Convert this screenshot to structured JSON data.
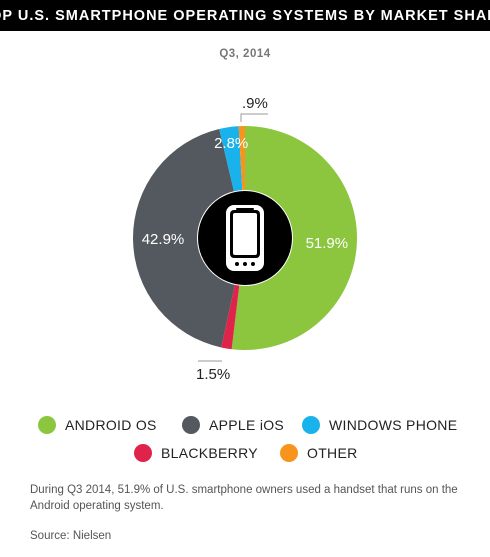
{
  "chart_data": {
    "type": "pie",
    "title": "TOP U.S. SMARTPHONE OPERATING SYSTEMS BY MARKET SHARE",
    "subtitle": "Q3, 2014",
    "slices": [
      {
        "name": "ANDROID OS",
        "value": 51.9,
        "label": "51.9%",
        "color": "#8cc63f"
      },
      {
        "name": "BLACKBERRY",
        "value": 1.5,
        "label": "1.5%",
        "color": "#e0234b"
      },
      {
        "name": "APPLE iOS",
        "value": 42.9,
        "label": "42.9%",
        "color": "#54585f"
      },
      {
        "name": "WINDOWS PHONE",
        "value": 2.8,
        "label": "2.8%",
        "color": "#1ab2ea"
      },
      {
        "name": "OTHER",
        "value": 0.9,
        "label": ".9%",
        "color": "#f7941d"
      }
    ],
    "center_icon": "smartphone-icon"
  },
  "legend": [
    {
      "label": "ANDROID OS",
      "color": "#8cc63f"
    },
    {
      "label": "APPLE iOS",
      "color": "#54585f"
    },
    {
      "label": "WINDOWS PHONE",
      "color": "#1ab2ea"
    },
    {
      "label": "BLACKBERRY",
      "color": "#e0234b"
    },
    {
      "label": "OTHER",
      "color": "#f7941d"
    }
  ],
  "note": "During Q3 2014, 51.9% of U.S. smartphone owners used a handset that runs on the Android operating system.",
  "source": "Source: Nielsen"
}
